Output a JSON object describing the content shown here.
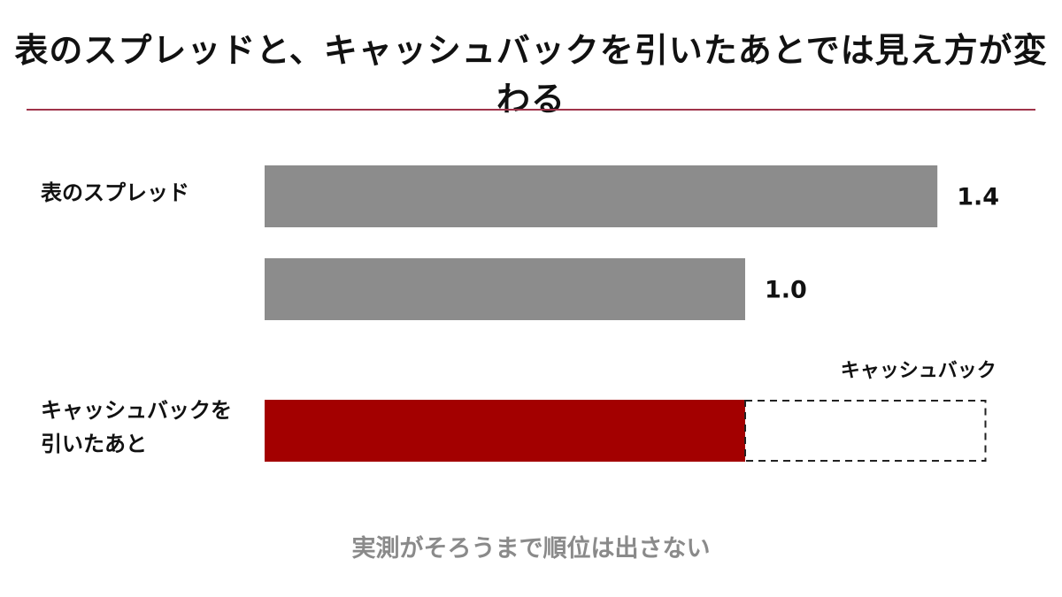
{
  "title": "表のスプレッドと、キャッシュバックを引いたあとでは見え方が変わる",
  "footnote": "実測がそろうまで順位は出さない",
  "chart_data": {
    "type": "bar",
    "orientation": "horizontal",
    "categories": [
      "表のスプレッド",
      null,
      "キャッシュバックを引いたあと"
    ],
    "values": [
      1.4,
      1.0,
      1.0
    ],
    "value_labels": [
      "1.4",
      "1.0",
      null
    ],
    "colors": [
      "#8c8c8c",
      "#8c8c8c",
      "#a30000"
    ],
    "stacked_segment": {
      "name": "キャッシュバック",
      "value": 0.5,
      "row": 2,
      "style": "dashed"
    }
  }
}
